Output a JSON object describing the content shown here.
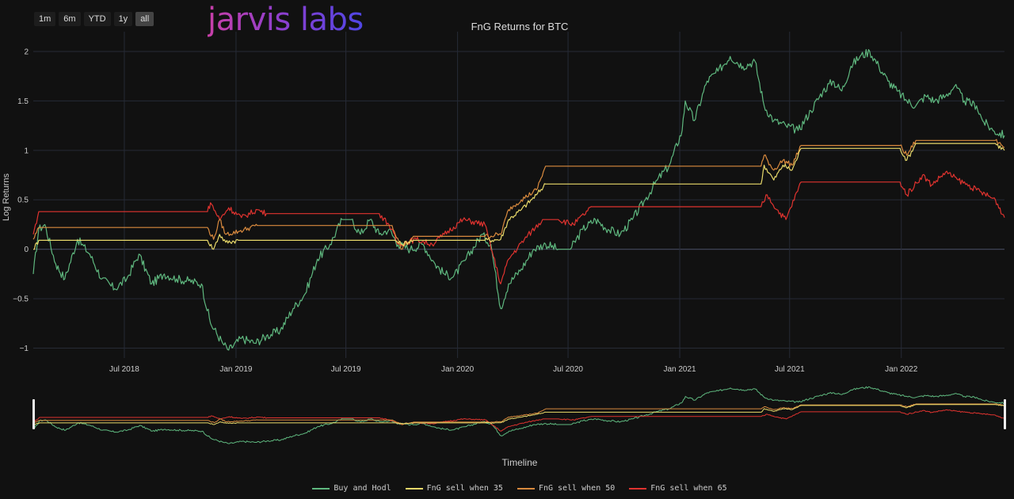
{
  "range_selector": {
    "buttons": [
      "1m",
      "6m",
      "YTD",
      "1y",
      "all"
    ],
    "active": "all"
  },
  "logo": {
    "text": "jarvis labs"
  },
  "chart_data": {
    "type": "line",
    "title": "FnG Returns for BTC",
    "xlabel": "Timeline",
    "ylabel": "Log Returns",
    "xlim": [
      "2018-02-01",
      "2022-06-20"
    ],
    "ylim": [
      -1.1,
      2.2
    ],
    "x_tick_labels": [
      "Jul 2018",
      "Jan 2019",
      "Jul 2019",
      "Jan 2020",
      "Jul 2020",
      "Jan 2021",
      "Jul 2021",
      "Jan 2022"
    ],
    "y_tick_labels": [
      "−1",
      "−0.5",
      "0",
      "0.5",
      "1",
      "1.5",
      "2"
    ],
    "legend_position": "bottom-center",
    "rangeslider": true,
    "series": [
      {
        "name": "Buy and Hodl",
        "color": "#5fb87f",
        "points": [
          [
            "2018-02-01",
            -0.25
          ],
          [
            "2018-02-10",
            0.2
          ],
          [
            "2018-02-20",
            0.25
          ],
          [
            "2018-03-10",
            -0.15
          ],
          [
            "2018-03-25",
            -0.3
          ],
          [
            "2018-04-15",
            0.1
          ],
          [
            "2018-05-05",
            -0.05
          ],
          [
            "2018-05-25",
            -0.3
          ],
          [
            "2018-06-15",
            -0.4
          ],
          [
            "2018-07-05",
            -0.3
          ],
          [
            "2018-07-25",
            -0.05
          ],
          [
            "2018-08-15",
            -0.35
          ],
          [
            "2018-09-05",
            -0.25
          ],
          [
            "2018-09-25",
            -0.3
          ],
          [
            "2018-10-15",
            -0.32
          ],
          [
            "2018-11-05",
            -0.35
          ],
          [
            "2018-11-20",
            -0.75
          ],
          [
            "2018-12-10",
            -0.95
          ],
          [
            "2018-12-20",
            -1.02
          ],
          [
            "2019-01-10",
            -0.9
          ],
          [
            "2019-02-01",
            -0.95
          ],
          [
            "2019-02-20",
            -0.88
          ],
          [
            "2019-03-15",
            -0.82
          ],
          [
            "2019-04-05",
            -0.6
          ],
          [
            "2019-04-25",
            -0.45
          ],
          [
            "2019-05-15",
            -0.1
          ],
          [
            "2019-06-05",
            0.05
          ],
          [
            "2019-06-25",
            0.3
          ],
          [
            "2019-07-10",
            0.3
          ],
          [
            "2019-07-25",
            0.15
          ],
          [
            "2019-08-10",
            0.3
          ],
          [
            "2019-08-25",
            0.15
          ],
          [
            "2019-09-10",
            0.2
          ],
          [
            "2019-09-25",
            0.05
          ],
          [
            "2019-10-15",
            0.0
          ],
          [
            "2019-11-05",
            0.05
          ],
          [
            "2019-11-25",
            -0.15
          ],
          [
            "2019-12-10",
            -0.25
          ],
          [
            "2019-12-25",
            -0.28
          ],
          [
            "2020-01-15",
            -0.1
          ],
          [
            "2020-02-10",
            0.15
          ],
          [
            "2020-02-25",
            0.05
          ],
          [
            "2020-03-12",
            -0.6
          ],
          [
            "2020-03-25",
            -0.35
          ],
          [
            "2020-04-15",
            -0.2
          ],
          [
            "2020-05-05",
            0.0
          ],
          [
            "2020-05-25",
            0.05
          ],
          [
            "2020-06-15",
            0.0
          ],
          [
            "2020-07-05",
            0.0
          ],
          [
            "2020-07-25",
            0.2
          ],
          [
            "2020-08-15",
            0.3
          ],
          [
            "2020-09-05",
            0.2
          ],
          [
            "2020-09-25",
            0.15
          ],
          [
            "2020-10-15",
            0.3
          ],
          [
            "2020-11-05",
            0.5
          ],
          [
            "2020-11-25",
            0.7
          ],
          [
            "2020-12-15",
            0.85
          ],
          [
            "2021-01-05",
            1.2
          ],
          [
            "2021-01-10",
            1.5
          ],
          [
            "2021-01-25",
            1.3
          ],
          [
            "2021-02-15",
            1.7
          ],
          [
            "2021-03-05",
            1.8
          ],
          [
            "2021-03-25",
            1.95
          ],
          [
            "2021-04-15",
            1.85
          ],
          [
            "2021-05-05",
            1.9
          ],
          [
            "2021-05-20",
            1.45
          ],
          [
            "2021-06-05",
            1.3
          ],
          [
            "2021-06-25",
            1.25
          ],
          [
            "2021-07-15",
            1.2
          ],
          [
            "2021-08-05",
            1.4
          ],
          [
            "2021-08-25",
            1.6
          ],
          [
            "2021-09-10",
            1.7
          ],
          [
            "2021-09-25",
            1.6
          ],
          [
            "2021-10-10",
            1.85
          ],
          [
            "2021-10-25",
            1.95
          ],
          [
            "2021-11-10",
            2.0
          ],
          [
            "2021-11-25",
            1.85
          ],
          [
            "2021-12-10",
            1.7
          ],
          [
            "2021-12-25",
            1.6
          ],
          [
            "2022-01-10",
            1.5
          ],
          [
            "2022-01-25",
            1.45
          ],
          [
            "2022-02-10",
            1.55
          ],
          [
            "2022-02-25",
            1.5
          ],
          [
            "2022-03-15",
            1.55
          ],
          [
            "2022-03-30",
            1.65
          ],
          [
            "2022-04-15",
            1.5
          ],
          [
            "2022-05-05",
            1.45
          ],
          [
            "2022-05-15",
            1.3
          ],
          [
            "2022-06-01",
            1.2
          ],
          [
            "2022-06-20",
            1.15
          ]
        ]
      },
      {
        "name": "FnG sell when 35",
        "color": "#e8d96a",
        "points": [
          [
            "2018-02-01",
            0.0
          ],
          [
            "2018-02-10",
            0.09
          ],
          [
            "2018-11-15",
            0.09
          ],
          [
            "2018-11-25",
            0.0
          ],
          [
            "2018-12-05",
            0.15
          ],
          [
            "2018-12-15",
            0.07
          ],
          [
            "2019-01-05",
            0.09
          ],
          [
            "2019-09-20",
            0.09
          ],
          [
            "2019-09-30",
            0.05
          ],
          [
            "2019-10-20",
            0.09
          ],
          [
            "2020-02-15",
            0.09
          ],
          [
            "2020-03-12",
            0.1
          ],
          [
            "2020-03-25",
            0.3
          ],
          [
            "2020-04-15",
            0.4
          ],
          [
            "2020-05-10",
            0.55
          ],
          [
            "2020-05-25",
            0.66
          ],
          [
            "2021-05-15",
            0.66
          ],
          [
            "2021-05-20",
            0.85
          ],
          [
            "2021-06-05",
            0.7
          ],
          [
            "2021-06-20",
            0.85
          ],
          [
            "2021-07-05",
            0.8
          ],
          [
            "2021-07-20",
            1.02
          ],
          [
            "2021-12-30",
            1.02
          ],
          [
            "2022-01-10",
            0.9
          ],
          [
            "2022-01-25",
            1.07
          ],
          [
            "2022-06-05",
            1.07
          ],
          [
            "2022-06-20",
            1.0
          ]
        ]
      },
      {
        "name": "FnG sell when 50",
        "color": "#d98a3e",
        "points": [
          [
            "2018-02-01",
            0.1
          ],
          [
            "2018-02-10",
            0.22
          ],
          [
            "2018-11-15",
            0.22
          ],
          [
            "2018-11-25",
            0.1
          ],
          [
            "2018-12-05",
            0.3
          ],
          [
            "2018-12-15",
            0.15
          ],
          [
            "2019-01-05",
            0.18
          ],
          [
            "2019-02-05",
            0.24
          ],
          [
            "2019-09-15",
            0.24
          ],
          [
            "2019-09-30",
            0.0
          ],
          [
            "2019-10-20",
            0.13
          ],
          [
            "2020-02-15",
            0.13
          ],
          [
            "2020-03-12",
            0.15
          ],
          [
            "2020-03-25",
            0.4
          ],
          [
            "2020-04-15",
            0.5
          ],
          [
            "2020-05-10",
            0.6
          ],
          [
            "2020-05-25",
            0.84
          ],
          [
            "2021-05-15",
            0.84
          ],
          [
            "2021-05-20",
            0.95
          ],
          [
            "2021-06-05",
            0.8
          ],
          [
            "2021-06-20",
            0.9
          ],
          [
            "2021-07-05",
            0.85
          ],
          [
            "2021-07-20",
            1.05
          ],
          [
            "2021-12-30",
            1.05
          ],
          [
            "2022-01-10",
            0.95
          ],
          [
            "2022-01-25",
            1.1
          ],
          [
            "2022-06-05",
            1.1
          ],
          [
            "2022-06-20",
            1.03
          ]
        ]
      },
      {
        "name": "FnG sell when 65",
        "color": "#e0332f",
        "points": [
          [
            "2018-02-01",
            0.15
          ],
          [
            "2018-02-10",
            0.38
          ],
          [
            "2018-11-15",
            0.38
          ],
          [
            "2018-11-20",
            0.47
          ],
          [
            "2018-12-05",
            0.3
          ],
          [
            "2018-12-20",
            0.42
          ],
          [
            "2019-01-10",
            0.32
          ],
          [
            "2019-02-05",
            0.4
          ],
          [
            "2019-02-20",
            0.36
          ],
          [
            "2019-08-25",
            0.36
          ],
          [
            "2019-09-10",
            0.25
          ],
          [
            "2019-09-25",
            0.05
          ],
          [
            "2019-10-25",
            0.1
          ],
          [
            "2019-11-20",
            0.05
          ],
          [
            "2019-12-10",
            0.15
          ],
          [
            "2020-01-10",
            0.3
          ],
          [
            "2020-02-15",
            0.25
          ],
          [
            "2020-03-12",
            -0.35
          ],
          [
            "2020-03-25",
            -0.1
          ],
          [
            "2020-04-20",
            0.1
          ],
          [
            "2020-05-20",
            0.3
          ],
          [
            "2020-06-15",
            0.3
          ],
          [
            "2020-07-10",
            0.25
          ],
          [
            "2020-08-10",
            0.43
          ],
          [
            "2021-05-15",
            0.43
          ],
          [
            "2021-05-25",
            0.55
          ],
          [
            "2021-06-10",
            0.4
          ],
          [
            "2021-06-25",
            0.3
          ],
          [
            "2021-07-20",
            0.68
          ],
          [
            "2021-12-30",
            0.68
          ],
          [
            "2022-01-10",
            0.55
          ],
          [
            "2022-02-05",
            0.75
          ],
          [
            "2022-02-20",
            0.65
          ],
          [
            "2022-03-15",
            0.78
          ],
          [
            "2022-04-05",
            0.7
          ],
          [
            "2022-05-05",
            0.6
          ],
          [
            "2022-06-05",
            0.5
          ],
          [
            "2022-06-20",
            0.32
          ]
        ]
      }
    ]
  }
}
